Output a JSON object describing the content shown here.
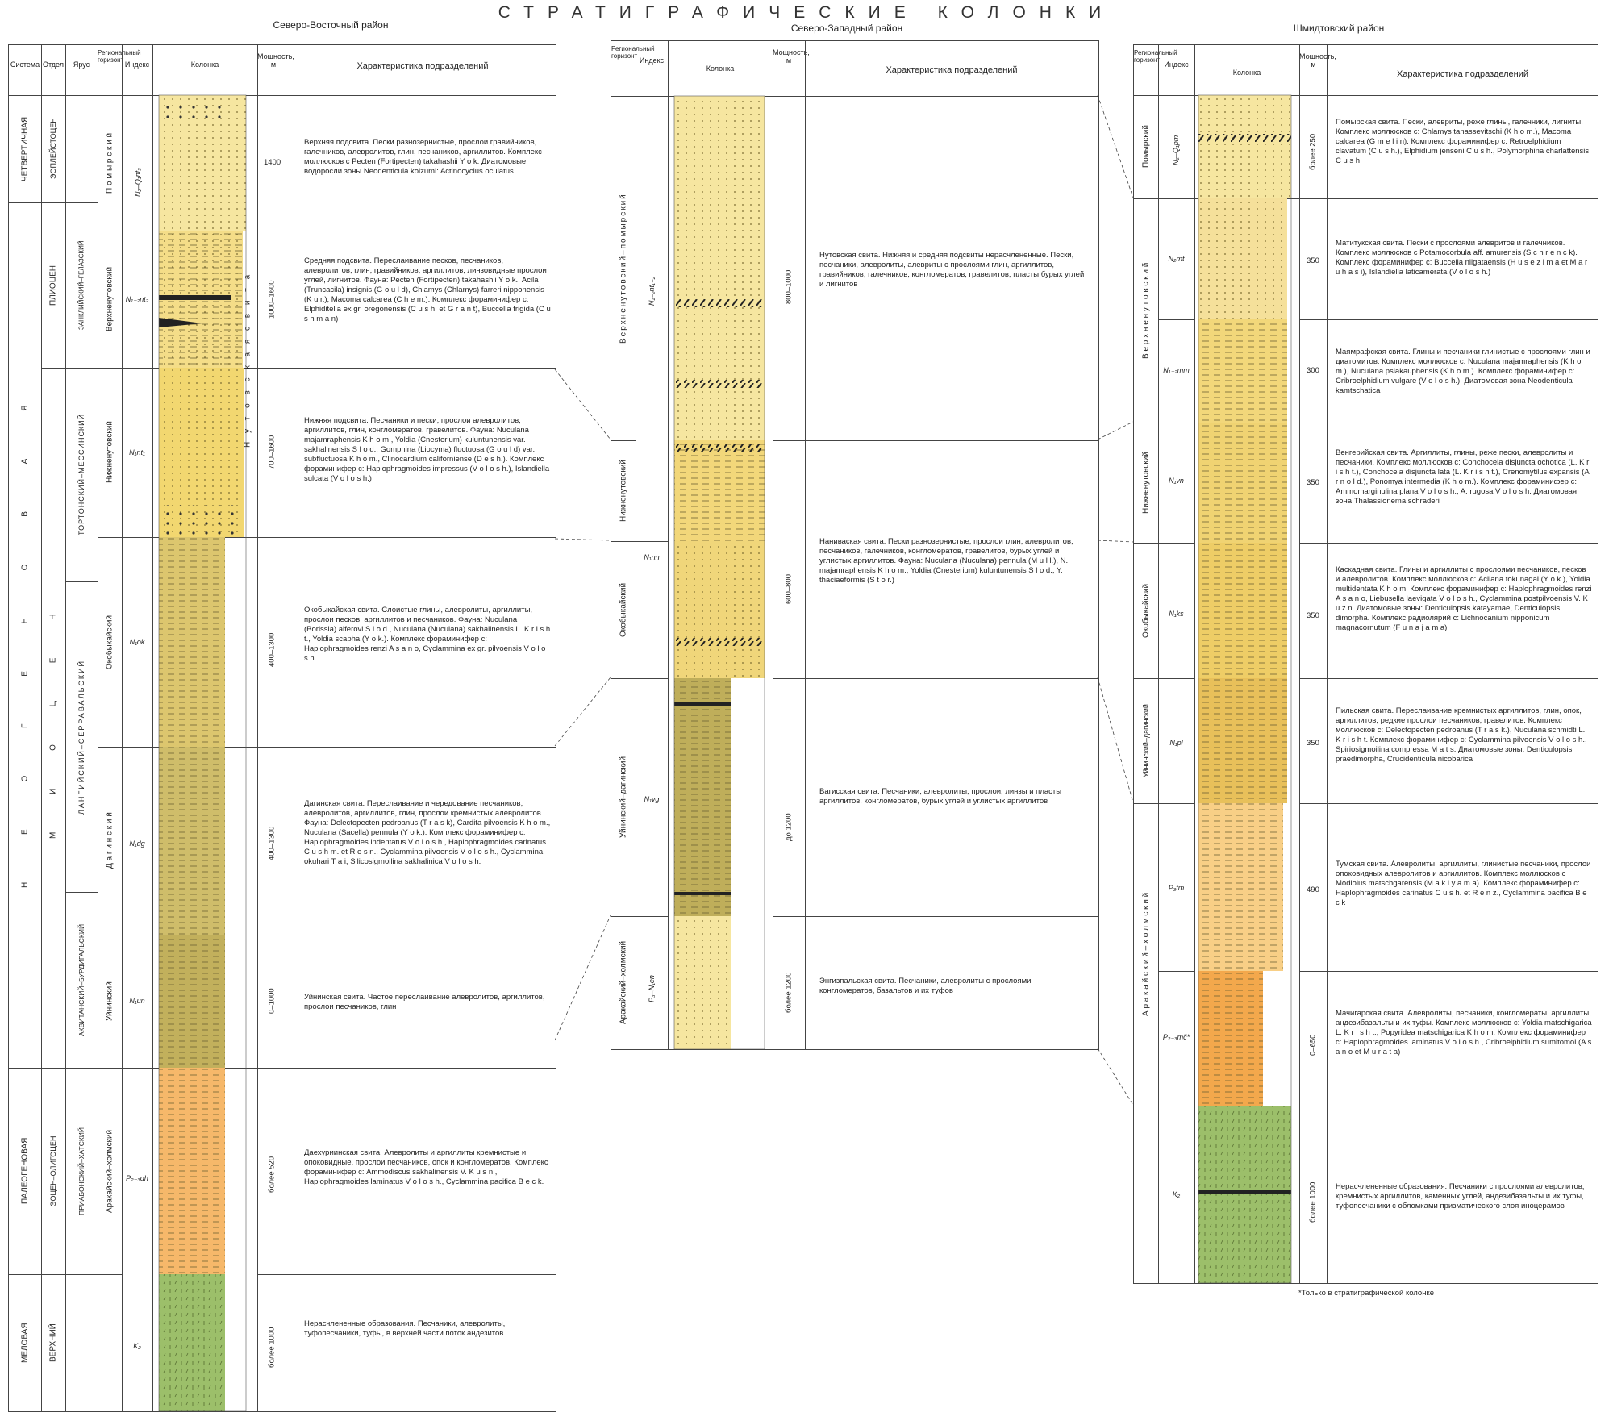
{
  "page_title": "СТРАТИГРАФИЧЕСКИЕ КОЛОНКИ",
  "headers": {
    "system": "Система",
    "department": "Отдел",
    "stage": "Ярус",
    "horizon": "Региональный горизонт",
    "index": "Индекс",
    "column": "Колонка",
    "thickness": "Мощность, м",
    "characteristic": "Характеристика подразделений"
  },
  "regions": {
    "ne": {
      "name": "Северо-Восточный район",
      "systems": [
        "ЧЕТВЕРТИЧНАЯ",
        "Н Е О Г Е Н О В А Я",
        "ПАЛЕОГЕНОВАЯ",
        "МЕЛОВАЯ"
      ],
      "departments": [
        "ЭОПЛЕЙСТОЦЕН",
        "ПЛИОЦЕН",
        "М И О Ц Е Н",
        "ЭОЦЕН–ОЛИГОЦЕН",
        "ВЕРХНИЙ"
      ],
      "stages": [
        "ЗАНКЛИЙСКИЙ–ГЕЛАЗСКИЙ",
        "ТОРТОНСКИЙ–МЕССИНСКИЙ",
        "ЛАНГИЙСКИЙ–СЕРРАВАЛЬСКИЙ",
        "АКВИТАНСКИЙ–БУРДИГАЛЬСКИЙ",
        "ПРИАБОНСКИЙ–ХАТСКИЙ"
      ],
      "suite_label": "Н у т о в с к а я   с в и т а",
      "units": [
        {
          "horizon": "П о м ы р с к и й",
          "index": "N₂–Q₁nt₃",
          "thickness": "1400",
          "desc": "Верхняя подсвита. Пески разнозернистые, прослои гравийников, галечников, алевролитов, глин, песчаников, аргиллитов. Комплекс моллюсков с Pecten (Fortipecten) takahashii Y o k. Диатомовые водоросли зоны Neodenticula koizumi: Actinocyclus oculatus"
        },
        {
          "horizon": "Верхненутовский",
          "index": "N₁₋₂nt₂",
          "thickness": "1000–1600",
          "desc": "Средняя подсвита. Переслаивание песков, песчаников, алевролитов, глин, гравийников, аргиллитов, линзовидные прослои углей, лигнитов. Фауна: Pecten (Fortipecten) takahashii Y o k., Acila (Truncacila) insignis (G o u l d), Chlamys (Chlamys) farreri nipponensis (K u r.), Macoma calcarea (C h e m.). Комплекс фораминифер с: Elphiditella ex gr. oregonensis (C u s h. et G r a n t), Buccella frigida (C u s h m a n)"
        },
        {
          "horizon": "Нижненутовский",
          "index": "N₁nt₁",
          "thickness": "700–1600",
          "desc": "Нижняя подсвита. Песчаники и пески, прослои алевролитов, аргиллитов, глин, конгломератов, гравелитов. Фауна: Nuculana majamraphensis K h o m., Yoldia (Cnesterium) kuluntunensis var. sakhalinensis S l o d., Gomphina (Liocyma) fluctuosa (G o u l d) var. subfluctuosa K h o m., Clinocardium californiense (D e s h.). Комплекс фораминифер с: Haplophragmoides impressus (V o l o s h.), Islandiella sulcata (V o l o s h.)"
        },
        {
          "horizon": "Окобыкайский",
          "index": "N₁ok",
          "thickness": "400–1300",
          "desc": "Окобыкайская свита. Слоистые глины, алевролиты, аргиллиты, прослои песков, аргиллитов и песчаников. Фауна: Nuculana (Borissia) alferovi S l o d., Nuculana (Nuculana) sakhalinensis L. K r i s h t., Yoldia scapha (Y o k.). Комплекс фораминифер с: Haplophragmoides renzi A s a n o, Cyclammina ex gr. pilvoensis V o l o s h."
        },
        {
          "horizon": "Д а г и н с к и й",
          "index": "N₁dg",
          "thickness": "400–1300",
          "desc": "Дагинская свита. Переслаивание и чередование песчаников, алевролитов, аргиллитов, глин, прослои кремнистых алевролитов. Фауна: Delectopecten pedroanus (T r a s k), Cardita pilvoensis K h o m., Nuculana (Sacella) pennula (Y o k.). Комплекс фораминифер с: Haplophragmoides indentatus V o l o s h., Haplophragmoides carinatus C u s h m. et R e s n., Cyclammina pilvoensis V o l o s h., Cyclammina okuhari T a i, Silicosigmoilina sakhalinica V o l o s h."
        },
        {
          "horizon": "Уйнинский",
          "index": "N₁un",
          "thickness": "0–1000",
          "desc": "Уйнинская свита. Частое переслаивание алевролитов, аргиллитов, прослои песчаников, глин"
        },
        {
          "horizon": "Аракайский–холмский",
          "index": "P₂₋₃dh",
          "thickness": "более 520",
          "desc": "Даехуриинская свита. Алевролиты и аргиллиты кремнистые и опоковидные, прослои песчаников, опок и конгломератов. Комплекс фораминифер с: Ammodiscus sakhalinensis V. K u s n., Haplophragmoides laminatus V o l o s h., Cyclammina pacifica B e c k."
        },
        {
          "horizon": "",
          "index": "K₂",
          "thickness": "более 1000",
          "desc": "Нерасчлененные образования. Песчаники, алевролиты, туфопесчаники, туфы, в верхней части поток андезитов"
        }
      ]
    },
    "nw": {
      "name": "Северо-Западный район",
      "units": [
        {
          "horizon": "Верхненутовский–помырский",
          "index": "N₁₋₂nt₁₋₂",
          "thickness": "800–1000",
          "desc": "Нутовская свита. Нижняя и средняя подсвиты нерасчлененные. Пески, песчаники, алевролиты, алевриты с прослоями глин, аргиллитов, гравийников, галечников, конгломератов, гравелитов, пласты бурых углей и лигнитов"
        },
        {
          "horizon": "Нижненутовский",
          "index": "",
          "thickness": "",
          "desc": ""
        },
        {
          "horizon": "Окобыкайский",
          "index": "N₁nn",
          "thickness": "600–800",
          "desc": "Наниваская свита. Пески разнозернистые, прослои глин, алевролитов, песчаников, галечников, конгломератов, гравелитов, бурых углей и углистых аргиллитов. Фауна: Nuculana (Nuculana) pennula (M u l l.), N. majamraphensis K h o m., Yoldia (Cnesterium) kuluntunensis S l o d., Y. thaciaeformis (S t o r.)"
        },
        {
          "horizon": "Уйнинский–дагинский",
          "index": "N₁vg",
          "thickness": "до 1200",
          "desc": "Вагисская свита. Песчаники, алевролиты, прослои, линзы и пласты аргиллитов, конгломератов, бурых углей и углистых аргиллитов"
        },
        {
          "horizon": "Аракайский–холмский",
          "index": "P₃–N₁en",
          "thickness": "более 1200",
          "desc": "Энгизпальская свита. Песчаники, алевролиты с прослоями конгломератов, базальтов и их туфов"
        }
      ]
    },
    "sh": {
      "name": "Шмидтовский район",
      "units": [
        {
          "horizon": "Помырский",
          "index": "N₂–Q₁pm",
          "thickness": "более 250",
          "desc": "Помырская свита. Пески, алевриты, реже глины, галечники, лигниты. Комплекс моллюсков с: Chlamys tanassevitschi (K h o m.), Macoma calcarea (G m e l i n). Комплекс фораминифер с: Retroelphidium clavatum (C u s h.), Elphidium jenseni C u s h., Polymorphina charlattensis C u s h."
        },
        {
          "horizon": "В е р х н е н у т о в с к и й",
          "index": "N₂mt",
          "thickness": "350",
          "desc": "Матитукская свита. Пески с прослоями алевритов и галечников. Комплекс моллюсков с Potamocorbula aff. amurensis (S c h r e n c k). Комплекс фораминифер с: Buccella niigataensis (H u s e z i m a et M a r u h a s i), Islandiella laticamerata (V o l o s h.)"
        },
        {
          "horizon": "",
          "index": "N₁₋₂mm",
          "thickness": "300",
          "desc": "Маямрафская свита. Глины и песчаники глинистые с прослоями глин и диатомитов. Комплекс моллюсков с: Nuculana majamraphensis (K h o m.), Nuculana psiakauphensis (K h o m.). Комплекс фораминифер с: Cribroelphidium vulgare (V o l o s h.). Диатомовая зона Neodenticula kamtschatica"
        },
        {
          "horizon": "Нижненутовский",
          "index": "N₁vn",
          "thickness": "350",
          "desc": "Венгерийская свита. Аргиллиты, глины, реже пески, алевролиты и песчаники. Комплекс моллюсков с: Conchocela disjuncta ochotica (L. K r i s h t.), Conchocela disjuncta lata (L. K r i s h t.), Crenomytilus expansis (A r n o l d.), Ponomya intermedia (K h o m.). Комплекс фораминифер с: Ammomarginulina plana V o l o s h., A. rugosa V o l o s h. Диатомовая зона Thalassionema schraderi"
        },
        {
          "horizon": "Окобыкайский",
          "index": "N₁ks",
          "thickness": "350",
          "desc": "Каскадная свита. Глины и аргиллиты с прослоями песчаников, песков и алевролитов. Комплекс моллюсков с: Acilana tokunagai (Y o k.), Yoldia multidentata K h o m. Комплекс фораминифер с: Haplophragmoides renzi A s a n o, Liebusella laevigata V o l o s h., Cyclammina postpilvoensis V. K u z n. Диатомовые зоны: Denticulopsis katayamae, Denticulopsis dimorpha. Комплекс радиолярий с: Lichnocanium nipponicum magnacornutum (F u n a j a m a)"
        },
        {
          "horizon": "Уйнинский–дагинский",
          "index": "N₁pl",
          "thickness": "350",
          "desc": "Пильская свита. Переслаивание кремнистых аргиллитов, глин, опок, аргиллитов, редкие прослои песчаников, гравелитов. Комплекс моллюсков с: Delectopecten pedroanus (T r a s k.), Nuculana schmidti L. K r i s h t. Комплекс фораминифер с: Cyclammina pilvoensis V o l o s h., Spiriosigmoilina compressa M a t s. Диатомовые зоны: Denticulopsis praedimorpha, Crucidenticula nicobarica"
        },
        {
          "horizon": "А р а к а й с к и й – х о л м с к и й",
          "index": "P₃tm",
          "thickness": "490",
          "desc": "Тумская свита. Алевролиты, аргиллиты, глинистые песчаники, прослои опоковидных алевролитов и аргиллитов. Комплекс моллюсков с Modiolus matschgarensis (M a k i y a m a). Комплекс фораминифер с: Haplophragmoides carinatus C u s h. et R e n z., Cyclammina pacifica B e c k"
        },
        {
          "horizon": "",
          "index": "P₂₋₃mč*",
          "thickness": "0–650",
          "desc": "Мачигарская свита. Алевролиты, песчаники, конгломераты, аргиллиты, андезибазальты и их туфы. Комплекс моллюсков с: Yoldia matschigarica L. K r i s h t., Popyridea matschigarica K h o m. Комплекс фораминифер с: Haplophragmoides laminatus V o l o s h., Cribroelphidium sumitomoi (A s a n o et M u r a t a)"
        },
        {
          "horizon": "",
          "index": "K₂",
          "thickness": "более 1000",
          "desc": "Нерасчлененные образования. Песчаники с прослоями алевролитов, кремнистых аргиллитов, каменных углей, андезибазальты и их туфы, туфопесчаники с обломками призматического слоя иноцерамов"
        }
      ],
      "footnote": "*Только в стратиграфической колонке"
    }
  },
  "colors": {
    "sand_light": "#f6e6a0",
    "sand": "#f2d87a",
    "clay_olive": "#d4c069",
    "olive_dark": "#bfae5a",
    "paleogene_orange": "#f6b86a",
    "paleogene_orange2": "#f3a84c",
    "cretaceous_green": "#9cbf6a",
    "coal": "#222222"
  }
}
